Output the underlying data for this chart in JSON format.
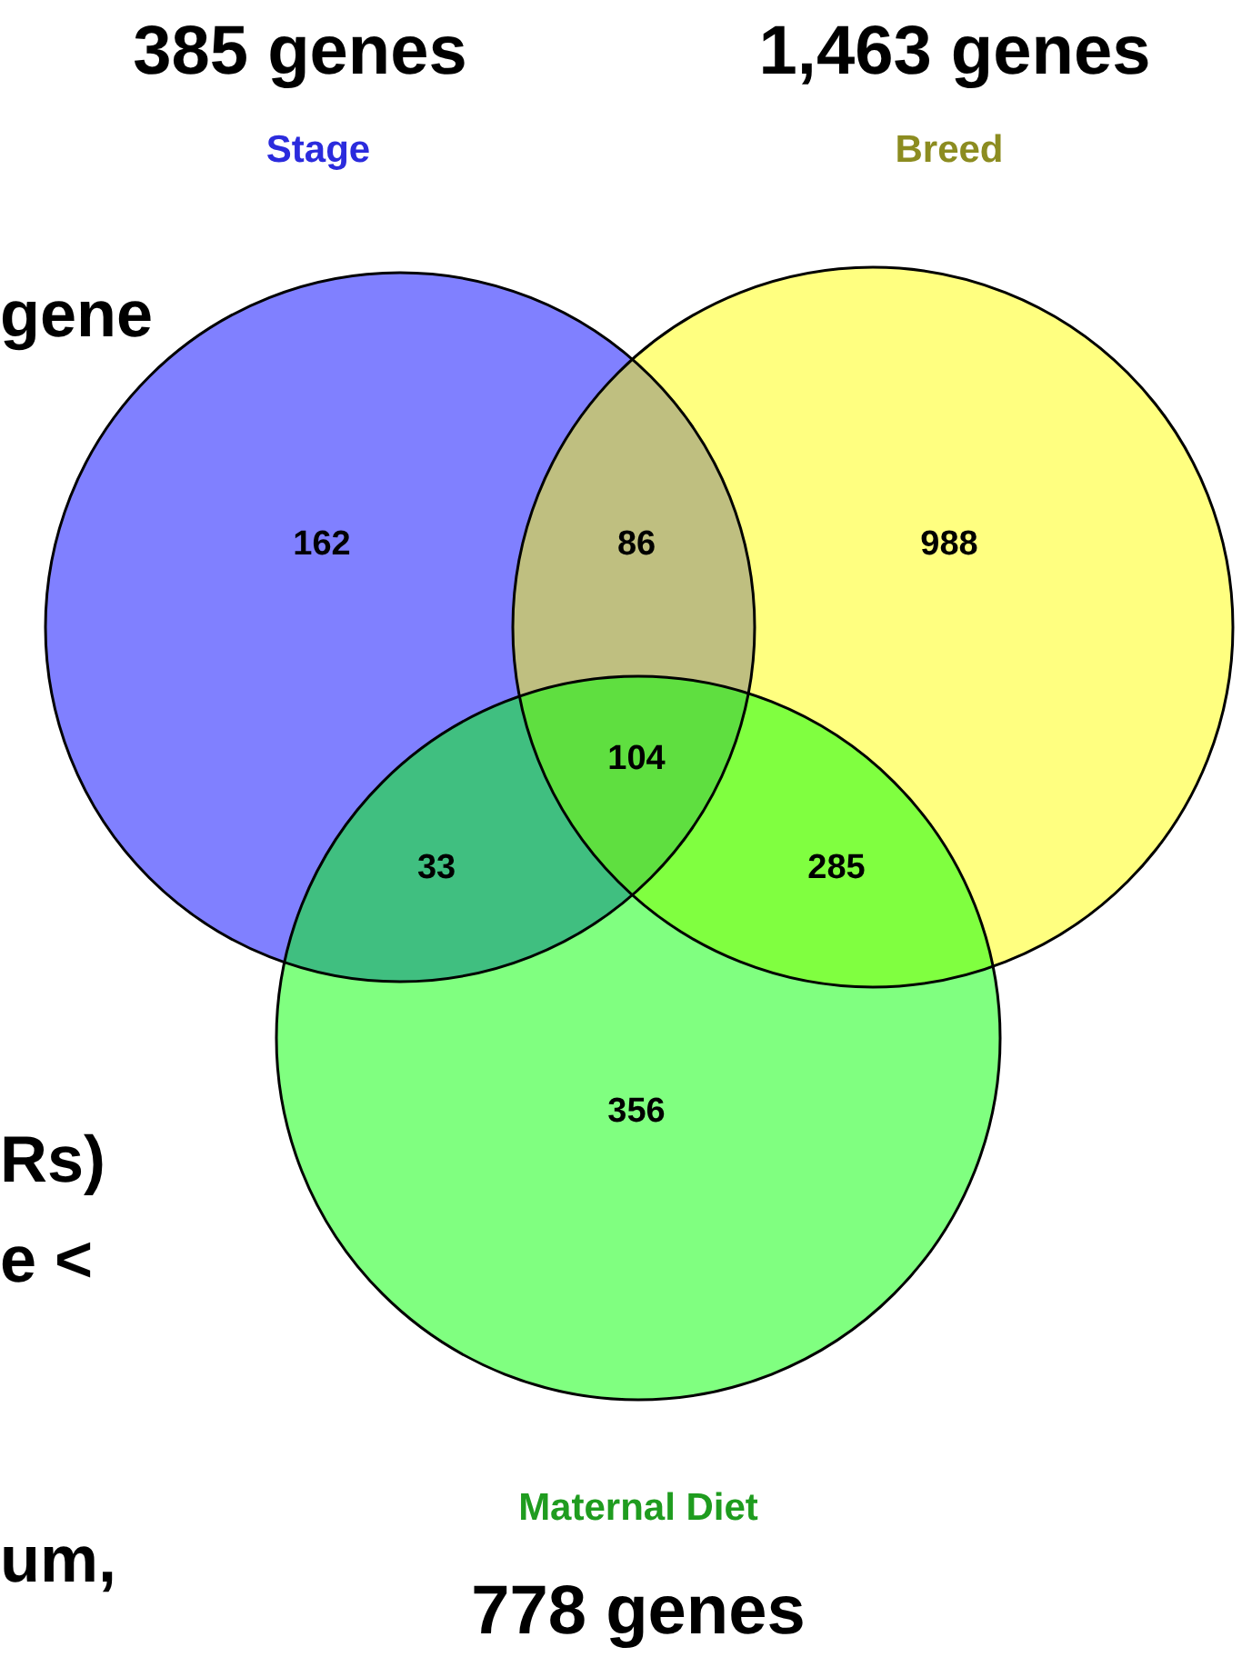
{
  "chart_data": {
    "type": "other",
    "categories": [
      null,
      null,
      null,
      null,
      null,
      null,
      null
    ],
    "values": [
      162,
      86,
      988,
      104,
      33,
      285,
      356
    ],
    "data_labels": true,
    "colors": [
      "#8080ff",
      "#bfbf80",
      "#ffff80",
      "#5fdf40",
      "#40bf80",
      "#80ff40",
      "#80ff80"
    ],
    "annotations": [
      "385 genes",
      "Stage",
      "1,463 genes",
      "Breed",
      "Maternal Diet",
      "778 genes",
      "gene",
      "Rs)",
      "e <",
      "um,"
    ]
  }
}
